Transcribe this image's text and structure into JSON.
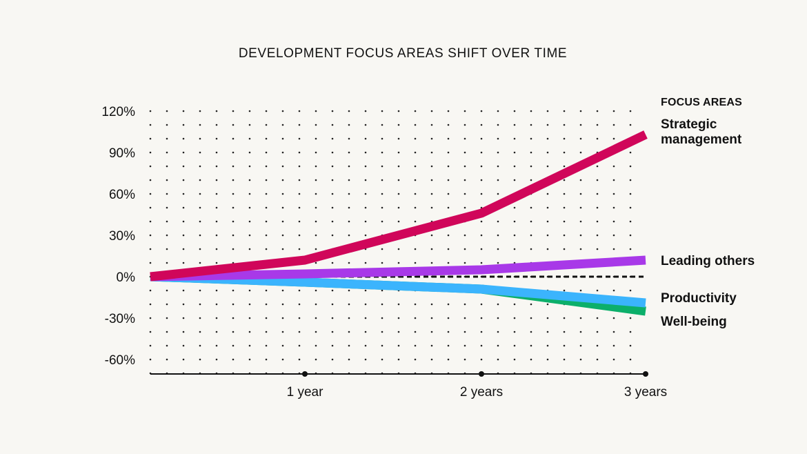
{
  "chart_data": {
    "type": "line",
    "title": "DEVELOPMENT FOCUS AREAS SHIFT OVER TIME",
    "xlabel": "",
    "ylabel": "",
    "x": [
      0,
      1,
      2,
      3
    ],
    "x_tick_labels": [
      "",
      "1 year",
      "2 years",
      "3 years"
    ],
    "y_ticks": [
      120,
      90,
      60,
      30,
      0,
      -30,
      -60
    ],
    "y_tick_labels": [
      "120%",
      "90%",
      "60%",
      "30%",
      "0%",
      "-30%",
      "-60%"
    ],
    "ylim": [
      -70,
      120
    ],
    "grid": "dotted",
    "baseline": 0,
    "legend_title": "FOCUS AREAS",
    "legend_position": "right",
    "series": [
      {
        "name": "Strategic management",
        "label_lines": [
          "Strategic",
          "management"
        ],
        "color": "#d0065a",
        "values": [
          0,
          12,
          46,
          103
        ]
      },
      {
        "name": "Leading others",
        "label_lines": [
          "Leading others"
        ],
        "color": "#a839e8",
        "values": [
          0,
          2,
          5,
          12
        ]
      },
      {
        "name": "Productivity",
        "label_lines": [
          "Productivity"
        ],
        "color": "#3bb4fd",
        "values": [
          0,
          -4,
          -9,
          -19
        ]
      },
      {
        "name": "Well-being",
        "label_lines": [
          "Well-being"
        ],
        "color": "#0caf6a",
        "values": [
          0,
          -4,
          -9,
          -25
        ]
      }
    ]
  }
}
